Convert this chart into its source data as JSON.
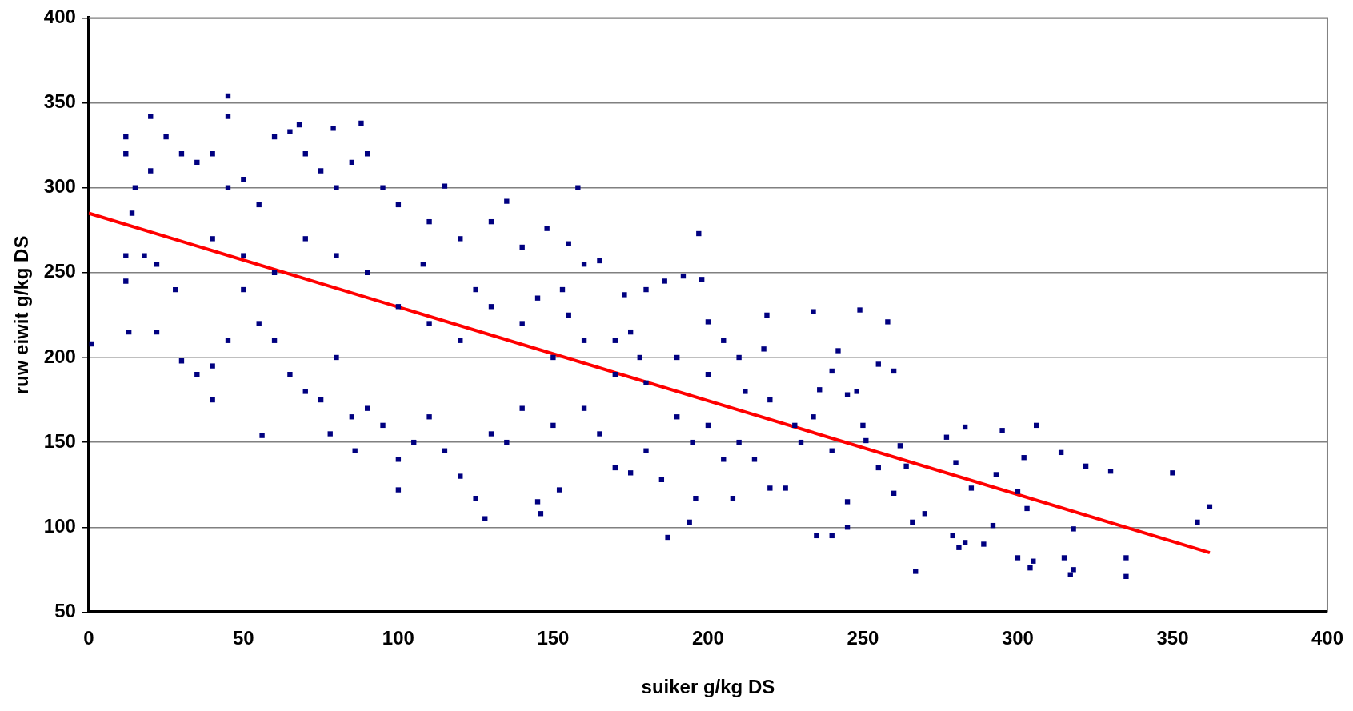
{
  "chart_data": {
    "type": "scatter",
    "xlabel": "suiker g/kg DS",
    "ylabel": "ruw eiwit g/kg DS",
    "xlim": [
      0,
      400
    ],
    "ylim": [
      50,
      400
    ],
    "xticks": [
      0,
      50,
      100,
      150,
      200,
      250,
      300,
      350,
      400
    ],
    "yticks": [
      50,
      100,
      150,
      200,
      250,
      300,
      350,
      400
    ],
    "grid": "y",
    "legend": false,
    "marker": "square",
    "series": [
      {
        "color": "#000080",
        "x": [
          1,
          12,
          12,
          12,
          12,
          13,
          20,
          22,
          45,
          45,
          158,
          197,
          68,
          79,
          88,
          40,
          56,
          78,
          86,
          100,
          125,
          128,
          145,
          146,
          152,
          187,
          194,
          196,
          208,
          234,
          249,
          258,
          242,
          255,
          260,
          267,
          270,
          266,
          279,
          281,
          283,
          289,
          292,
          300,
          304,
          305,
          315,
          317,
          318,
          335,
          335,
          350,
          358,
          362,
          318,
          330,
          322,
          314,
          306,
          302,
          295,
          300,
          303,
          293,
          285,
          283,
          280,
          277,
          264,
          262,
          251,
          248,
          245,
          240,
          236,
          234,
          228,
          225,
          220,
          215,
          212,
          218,
          219,
          210,
          205,
          200,
          198,
          192,
          186,
          180,
          178,
          173,
          170,
          165,
          160,
          155,
          153,
          148,
          140,
          135,
          130,
          120,
          115,
          110,
          108,
          100,
          95,
          90,
          85,
          80,
          75,
          70,
          65,
          60,
          55,
          50,
          45,
          40,
          35,
          30,
          25,
          20,
          15,
          14,
          18,
          22,
          28,
          30,
          35,
          40,
          45,
          50,
          55,
          60,
          65,
          70,
          75,
          80,
          85,
          90,
          95,
          100,
          105,
          110,
          115,
          120,
          130,
          135,
          140,
          150,
          160,
          165,
          170,
          175,
          180,
          185,
          190,
          195,
          200,
          205,
          210,
          120,
          130,
          140,
          150,
          160,
          170,
          180,
          190,
          100,
          90,
          80,
          70,
          60,
          50,
          40,
          110,
          125,
          145,
          155,
          175,
          200,
          220,
          230,
          240,
          250,
          255,
          260,
          245,
          240,
          235,
          245
        ],
        "values": [
          208,
          330,
          320,
          260,
          245,
          215,
          342,
          215,
          354,
          342,
          300,
          273,
          337,
          335,
          338,
          175,
          154,
          155,
          145,
          122,
          117,
          105,
          115,
          108,
          122,
          94,
          103,
          117,
          117,
          227,
          228,
          221,
          204,
          196,
          192,
          74,
          108,
          103,
          95,
          88,
          91,
          90,
          101,
          82,
          76,
          80,
          82,
          72,
          75,
          71,
          82,
          132,
          103,
          112,
          99,
          133,
          136,
          144,
          160,
          141,
          157,
          121,
          111,
          131,
          123,
          159,
          138,
          153,
          136,
          148,
          151,
          180,
          178,
          192,
          181,
          165,
          160,
          123,
          123,
          140,
          180,
          205,
          225,
          200,
          210,
          221,
          246,
          248,
          245,
          240,
          200,
          237,
          210,
          257,
          255,
          267,
          240,
          276,
          265,
          292,
          280,
          270,
          301,
          280,
          255,
          290,
          300,
          320,
          315,
          300,
          310,
          320,
          333,
          330,
          290,
          305,
          300,
          320,
          315,
          320,
          330,
          310,
          300,
          285,
          260,
          255,
          240,
          198,
          190,
          195,
          210,
          240,
          220,
          210,
          190,
          180,
          175,
          200,
          165,
          170,
          160,
          140,
          150,
          165,
          145,
          130,
          155,
          150,
          170,
          160,
          170,
          155,
          135,
          132,
          145,
          128,
          165,
          150,
          160,
          140,
          150,
          210,
          230,
          220,
          200,
          210,
          190,
          185,
          200,
          230,
          250,
          260,
          270,
          250,
          260,
          270,
          220,
          240,
          235,
          225,
          215,
          190,
          175,
          150,
          145,
          160,
          135,
          120,
          100,
          95,
          95,
          115
        ]
      },
      {
        "type": "line",
        "color": "#ff0000",
        "x": [
          0,
          362
        ],
        "values": [
          285,
          85
        ],
        "marker": "none"
      }
    ]
  }
}
